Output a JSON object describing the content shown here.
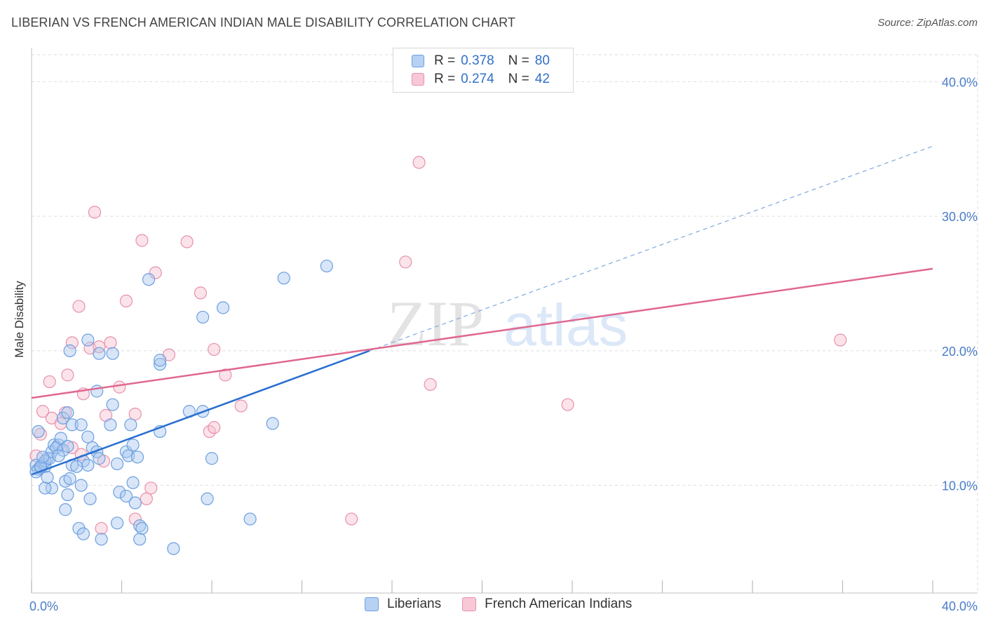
{
  "chart_data": {
    "type": "scatter",
    "title": "LIBERIAN VS FRENCH AMERICAN INDIAN MALE DISABILITY CORRELATION CHART",
    "source": "Source: ZipAtlas.com",
    "ylabel": "Male Disability",
    "xlabel": "",
    "xlim": [
      0,
      40
    ],
    "ylim": [
      2,
      42
    ],
    "x_tick_labels": [
      "0.0%",
      "40.0%"
    ],
    "y_ticks": [
      10,
      20,
      30,
      40
    ],
    "y_tick_labels": [
      "10.0%",
      "20.0%",
      "30.0%",
      "40.0%"
    ],
    "grid": true,
    "watermark": {
      "part1": "ZIP",
      "part2": "atlas"
    },
    "legend": {
      "r_label": "R =",
      "n_label": "N =",
      "entries": [
        {
          "name": "Liberians",
          "r": "0.378",
          "n": "80"
        },
        {
          "name": "French American Indians",
          "r": "0.274",
          "n": "42"
        }
      ]
    },
    "series": [
      {
        "name": "Liberians",
        "color": "#6d9fe0",
        "fill": "#a9c8f0",
        "line_color": "#2a6fd0",
        "trend": {
          "x0": 0,
          "y0": 10.8,
          "x1": 15,
          "y1": 20.0,
          "dash_to_x": 40,
          "dash_to_y": 35.2
        },
        "points": [
          [
            0.2,
            11.5
          ],
          [
            0.3,
            11.2
          ],
          [
            0.4,
            11.3
          ],
          [
            0.5,
            11.6
          ],
          [
            0.6,
            11.4
          ],
          [
            0.3,
            14
          ],
          [
            0.7,
            12
          ],
          [
            0.6,
            11.8
          ],
          [
            0.8,
            12
          ],
          [
            0.9,
            12.5
          ],
          [
            1.0,
            13
          ],
          [
            1.2,
            13
          ],
          [
            1.1,
            12.8
          ],
          [
            1.4,
            12.6
          ],
          [
            0.9,
            9.8
          ],
          [
            0.6,
            9.8
          ],
          [
            0.7,
            10.6
          ],
          [
            1.5,
            10.3
          ],
          [
            1.3,
            13.5
          ],
          [
            1.4,
            15
          ],
          [
            1.6,
            15.4
          ],
          [
            1.8,
            14.5
          ],
          [
            2.2,
            14.5
          ],
          [
            2.5,
            13.6
          ],
          [
            2.7,
            12.8
          ],
          [
            1.7,
            10.5
          ],
          [
            1.8,
            11.5
          ],
          [
            2.3,
            11.8
          ],
          [
            2.2,
            10
          ],
          [
            1.6,
            9.3
          ],
          [
            2.6,
            9
          ],
          [
            1.5,
            8.2
          ],
          [
            2.1,
            6.8
          ],
          [
            2.3,
            6.4
          ],
          [
            3.1,
            6
          ],
          [
            3.8,
            7.2
          ],
          [
            4.8,
            7.0
          ],
          [
            4.9,
            6.8
          ],
          [
            4.8,
            6.0
          ],
          [
            6.3,
            5.3
          ],
          [
            2.5,
            11.5
          ],
          [
            2.9,
            12.5
          ],
          [
            3.0,
            12.0
          ],
          [
            3.8,
            11.6
          ],
          [
            4.2,
            12.5
          ],
          [
            4.3,
            12.2
          ],
          [
            4.7,
            12.1
          ],
          [
            4.5,
            13
          ],
          [
            3.5,
            14.5
          ],
          [
            4.4,
            14.5
          ],
          [
            5.7,
            14
          ],
          [
            3.6,
            16
          ],
          [
            2.9,
            17
          ],
          [
            1.7,
            20
          ],
          [
            2.5,
            20.8
          ],
          [
            3.0,
            19.8
          ],
          [
            3.6,
            19.8
          ],
          [
            5.7,
            19.0
          ],
          [
            5.7,
            19.3
          ],
          [
            5.2,
            25.3
          ],
          [
            7.6,
            22.5
          ],
          [
            8.5,
            23.2
          ],
          [
            11.2,
            25.4
          ],
          [
            13.1,
            26.3
          ],
          [
            7.0,
            15.5
          ],
          [
            7.6,
            15.5
          ],
          [
            10.7,
            14.6
          ],
          [
            8.0,
            12.0
          ],
          [
            3.9,
            9.5
          ],
          [
            4.2,
            9.2
          ],
          [
            4.5,
            10.2
          ],
          [
            4.6,
            8.7
          ],
          [
            7.8,
            9.0
          ],
          [
            9.7,
            7.5
          ],
          [
            0.2,
            11.0
          ],
          [
            0.4,
            11.4
          ],
          [
            2.0,
            11.4
          ],
          [
            1.2,
            12.2
          ],
          [
            1.6,
            12.9
          ],
          [
            0.5,
            12.1
          ]
        ]
      },
      {
        "name": "French American Indians",
        "color": "#e890ac",
        "fill": "#f6c0d0",
        "line_color": "#e06890",
        "trend": {
          "x0": 0,
          "y0": 16.5,
          "x1": 40,
          "y1": 26.1
        },
        "points": [
          [
            0.2,
            12.2
          ],
          [
            0.4,
            13.8
          ],
          [
            0.5,
            15.5
          ],
          [
            0.8,
            17.7
          ],
          [
            0.9,
            15.0
          ],
          [
            1.3,
            14.6
          ],
          [
            1.6,
            18.2
          ],
          [
            1.5,
            15.4
          ],
          [
            1.8,
            12.8
          ],
          [
            1.8,
            20.6
          ],
          [
            2.1,
            23.3
          ],
          [
            2.3,
            16.8
          ],
          [
            2.2,
            12.3
          ],
          [
            2.6,
            20.2
          ],
          [
            2.8,
            30.3
          ],
          [
            3.0,
            20.3
          ],
          [
            3.3,
            15.2
          ],
          [
            3.5,
            20.6
          ],
          [
            3.2,
            11.8
          ],
          [
            3.9,
            17.3
          ],
          [
            4.2,
            23.7
          ],
          [
            4.6,
            15.3
          ],
          [
            4.9,
            28.2
          ],
          [
            5.5,
            25.8
          ],
          [
            6.1,
            19.7
          ],
          [
            6.9,
            28.1
          ],
          [
            7.5,
            24.3
          ],
          [
            8.1,
            20.1
          ],
          [
            7.9,
            14.0
          ],
          [
            8.1,
            14.3
          ],
          [
            8.6,
            18.2
          ],
          [
            9.3,
            15.9
          ],
          [
            5.3,
            9.8
          ],
          [
            5.1,
            9.0
          ],
          [
            4.6,
            7.5
          ],
          [
            3.1,
            6.8
          ],
          [
            14.2,
            7.5
          ],
          [
            17.2,
            34.0
          ],
          [
            16.6,
            26.6
          ],
          [
            17.7,
            17.5
          ],
          [
            23.8,
            16.0
          ],
          [
            35.9,
            20.8
          ]
        ]
      }
    ]
  }
}
